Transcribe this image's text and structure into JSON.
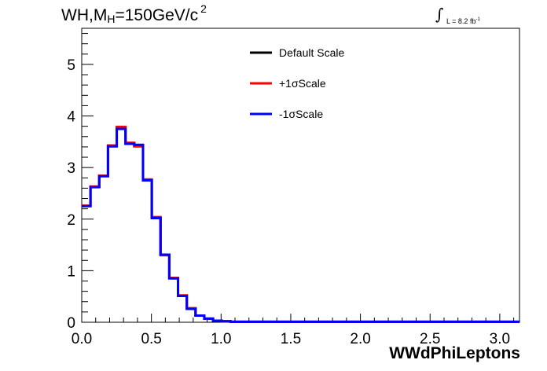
{
  "chart_data": {
    "type": "line",
    "title": "WH,M",
    "title_sub": "H",
    "title_rest": "=150GeV/c",
    "title_sup": "2",
    "lumi_text": "L = 8.2 fb",
    "lumi_sup": "-1",
    "xlabel": "WWdPhiLeptons",
    "ylabel": "",
    "xlim": [
      0,
      3.1416
    ],
    "ylim": [
      0,
      5.7
    ],
    "xticks": [
      "0.0",
      "0.5",
      "1.0",
      "1.5",
      "2.0",
      "2.5",
      "3.0"
    ],
    "yticks": [
      "0",
      "1",
      "2",
      "3",
      "4",
      "5"
    ],
    "bin_width": 0.0628,
    "bin_low_edges": [
      0.0,
      0.0628,
      0.1257,
      0.1885,
      0.2513,
      0.3142,
      0.377,
      0.4398,
      0.5027,
      0.5655,
      0.6283,
      0.6912,
      0.754,
      0.8168,
      0.8796,
      0.9425,
      1.0053,
      1.0681,
      1.131,
      1.1938,
      1.2566
    ],
    "legend_position": "top-center",
    "series": [
      {
        "name": "Default Scale",
        "color": "#000000",
        "values": [
          2.26,
          2.63,
          2.84,
          3.42,
          3.76,
          3.47,
          3.43,
          2.76,
          2.03,
          1.31,
          0.86,
          0.52,
          0.27,
          0.13,
          0.07,
          0.03,
          0.02,
          0.01,
          0.01,
          0.01,
          0.01
        ]
      },
      {
        "name": "+1σScale",
        "color": "#ff0000",
        "values": [
          2.26,
          2.63,
          2.84,
          3.43,
          3.79,
          3.48,
          3.41,
          2.77,
          2.04,
          1.3,
          0.86,
          0.52,
          0.27,
          0.13,
          0.07,
          0.03,
          0.02,
          0.01,
          0.01,
          0.01,
          0.01
        ]
      },
      {
        "name": "-1σScale",
        "color": "#0000ff",
        "values": [
          2.25,
          2.62,
          2.83,
          3.41,
          3.75,
          3.46,
          3.44,
          2.75,
          2.02,
          1.31,
          0.85,
          0.51,
          0.26,
          0.13,
          0.07,
          0.03,
          0.02,
          0.01,
          0.01,
          0.01,
          0.01
        ]
      }
    ]
  }
}
